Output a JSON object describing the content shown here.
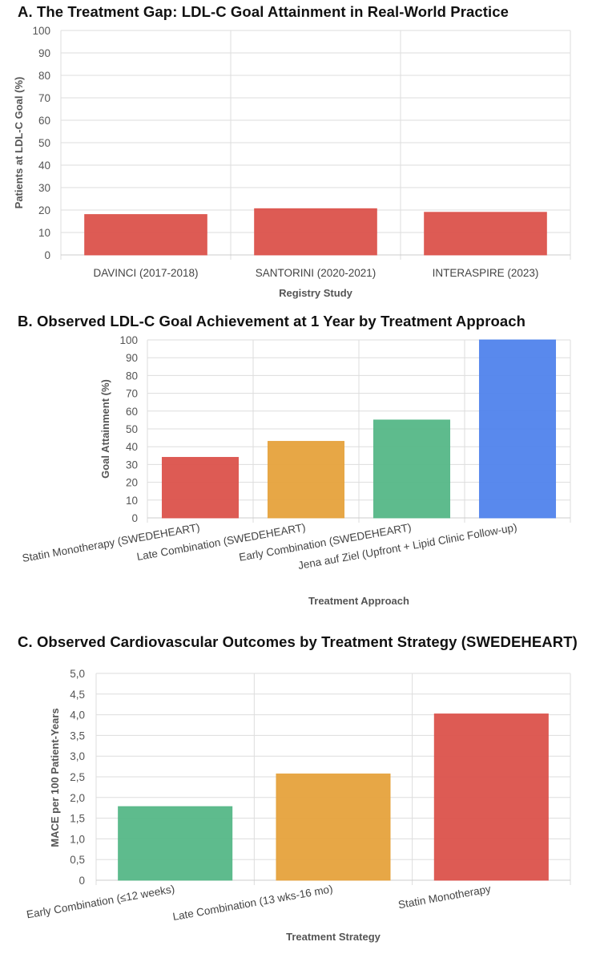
{
  "chart_data": [
    {
      "id": "A",
      "type": "bar",
      "title": "A. The Treatment Gap: LDL-C Goal Attainment in Real-World Practice",
      "xlabel": "Registry Study",
      "ylabel": "Patients at LDL-C Goal (%)",
      "categories": [
        "DAVINCI (2017-2018)",
        "SANTORINI (2020-2021)",
        "INTERASPIRE (2023)"
      ],
      "values": [
        18,
        20.6,
        19
      ],
      "colors": [
        "#db524b",
        "#db524b",
        "#db524b"
      ],
      "ylim": [
        0,
        100
      ],
      "yticks": [
        "0",
        "10",
        "20",
        "30",
        "40",
        "50",
        "60",
        "70",
        "80",
        "90",
        "100"
      ],
      "grid": true
    },
    {
      "id": "B",
      "type": "bar",
      "title": "B. Observed LDL-C Goal Achievement at 1 Year by Treatment Approach",
      "xlabel": "Treatment Approach",
      "ylabel": "Goal Attainment (%)",
      "categories": [
        "Statin Monotherapy (SWEDEHEART)",
        "Late Combination (SWEDEHEART)",
        "Early Combination (SWEDEHEART)",
        "Jena auf Ziel (Upfront + Lipid Clinic Follow-up)"
      ],
      "values": [
        34,
        43,
        55,
        100
      ],
      "colors": [
        "#db524b",
        "#e6a23c",
        "#55b787",
        "#5083ec"
      ],
      "ylim": [
        0,
        100
      ],
      "yticks": [
        "0",
        "10",
        "20",
        "30",
        "40",
        "50",
        "60",
        "70",
        "80",
        "90",
        "100"
      ],
      "grid": true
    },
    {
      "id": "C",
      "type": "bar",
      "title": "C. Observed Cardiovascular Outcomes by Treatment Strategy (SWEDEHEART)",
      "xlabel": "Treatment Strategy",
      "ylabel": "MACE per 100 Patient-Years",
      "categories": [
        "Early Combination (≤12 weeks)",
        "Late Combination (13 wks-16 mo)",
        "Statin Monotherapy"
      ],
      "values": [
        1.78,
        2.57,
        4.02
      ],
      "colors": [
        "#55b787",
        "#e6a23c",
        "#db524b"
      ],
      "ylim": [
        0,
        5
      ],
      "yticks": [
        "0",
        "0,5",
        "1,0",
        "1,5",
        "2,0",
        "2,5",
        "3,0",
        "3,5",
        "4,0",
        "4,5",
        "5,0"
      ],
      "grid": true
    }
  ]
}
